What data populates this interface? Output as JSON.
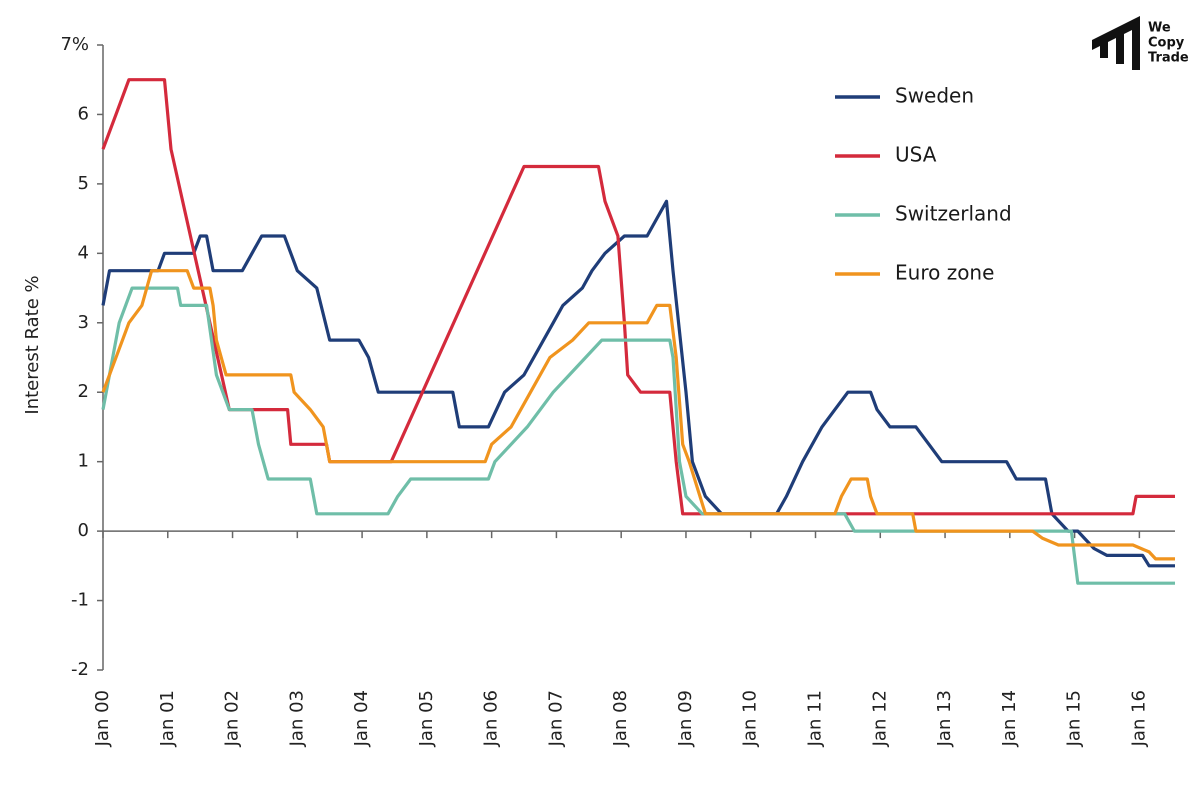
{
  "chart_data": {
    "type": "line",
    "y_label": "Interest Rate %",
    "xlim": [
      2000,
      2016.55
    ],
    "xticks": [
      {
        "value": 2000,
        "label": "Jan 00"
      },
      {
        "value": 2001,
        "label": "Jan 01"
      },
      {
        "value": 2002,
        "label": "Jan 02"
      },
      {
        "value": 2003,
        "label": "Jan 03"
      },
      {
        "value": 2004,
        "label": "Jan 04"
      },
      {
        "value": 2005,
        "label": "Jan 05"
      },
      {
        "value": 2006,
        "label": "Jan 06"
      },
      {
        "value": 2007,
        "label": "Jan 07"
      },
      {
        "value": 2008,
        "label": "Jan 08"
      },
      {
        "value": 2009,
        "label": "Jan 09"
      },
      {
        "value": 2010,
        "label": "Jan 10"
      },
      {
        "value": 2011,
        "label": "Jan 11"
      },
      {
        "value": 2012,
        "label": "Jan 12"
      },
      {
        "value": 2013,
        "label": "Jan 13"
      },
      {
        "value": 2014,
        "label": "Jan 14"
      },
      {
        "value": 2015,
        "label": "Jan 15"
      },
      {
        "value": 2016,
        "label": "Jan 16"
      }
    ],
    "ylim": [
      -2,
      7
    ],
    "yticks": [
      -2,
      -1,
      0,
      1,
      2,
      3,
      4,
      5,
      6,
      {
        "value": 7,
        "label": "7%"
      }
    ],
    "legend": "top-right",
    "series": [
      {
        "name": "Sweden",
        "color": "#1f3d78",
        "x": [
          2000.0,
          2000.1,
          2000.85,
          2000.95,
          2001.4,
          2001.5,
          2001.6,
          2001.7,
          2002.15,
          2002.3,
          2002.45,
          2002.8,
          2003.0,
          2003.3,
          2003.5,
          2003.95,
          2004.1,
          2004.25,
          2005.4,
          2005.5,
          2005.95,
          2006.2,
          2006.5,
          2006.95,
          2007.1,
          2007.4,
          2007.55,
          2007.75,
          2008.05,
          2008.4,
          2008.55,
          2008.7,
          2008.8,
          2009.0,
          2009.1,
          2009.3,
          2009.55,
          2010.4,
          2010.55,
          2010.8,
          2011.1,
          2011.3,
          2011.5,
          2011.85,
          2011.95,
          2012.15,
          2012.55,
          2012.75,
          2012.95,
          2013.95,
          2014.1,
          2014.55,
          2014.65,
          2014.9,
          2015.05,
          2015.15,
          2015.3,
          2015.5,
          2016.05,
          2016.15,
          2016.55
        ],
        "values": [
          3.25,
          3.75,
          3.75,
          4.0,
          4.0,
          4.25,
          4.25,
          3.75,
          3.75,
          4.0,
          4.25,
          4.25,
          3.75,
          3.5,
          2.75,
          2.75,
          2.5,
          2.0,
          2.0,
          1.5,
          1.5,
          2.0,
          2.25,
          3.0,
          3.25,
          3.5,
          3.75,
          4.0,
          4.25,
          4.25,
          4.5,
          4.75,
          3.75,
          2.0,
          1.0,
          0.5,
          0.25,
          0.25,
          0.5,
          1.0,
          1.5,
          1.75,
          2.0,
          2.0,
          1.75,
          1.5,
          1.5,
          1.25,
          1.0,
          1.0,
          0.75,
          0.75,
          0.25,
          0,
          0,
          -0.1,
          -0.25,
          -0.35,
          -0.35,
          -0.5,
          -0.5
        ]
      },
      {
        "name": "USA",
        "color": "#d42a3c",
        "x": [
          2000.0,
          2000.2,
          2000.4,
          2000.95,
          2001.05,
          2001.95,
          2002.85,
          2002.9,
          2003.45,
          2003.5,
          2004.45,
          2006.5,
          2007.65,
          2007.75,
          2007.95,
          2008.05,
          2008.1,
          2008.3,
          2008.75,
          2008.85,
          2008.95,
          2015.9,
          2015.95,
          2016.55
        ],
        "values": [
          5.5,
          6.0,
          6.5,
          6.5,
          5.5,
          1.75,
          1.75,
          1.25,
          1.25,
          1.0,
          1.0,
          5.25,
          5.25,
          4.75,
          4.25,
          3.0,
          2.25,
          2.0,
          2.0,
          1.0,
          0.25,
          0.25,
          0.5,
          0.5
        ]
      },
      {
        "name": "Switzerland",
        "color": "#6fbea8",
        "x": [
          2000.0,
          2000.15,
          2000.25,
          2000.45,
          2001.15,
          2001.2,
          2001.6,
          2001.75,
          2001.95,
          2002.3,
          2002.4,
          2002.55,
          2003.2,
          2003.3,
          2004.4,
          2004.55,
          2004.75,
          2005.95,
          2006.05,
          2006.3,
          2006.55,
          2006.95,
          2007.2,
          2007.45,
          2007.7,
          2008.75,
          2008.8,
          2008.9,
          2009.0,
          2009.25,
          2011.45,
          2011.6,
          2014.95,
          2015.05,
          2016.55
        ],
        "values": [
          1.75,
          2.5,
          3.0,
          3.5,
          3.5,
          3.25,
          3.25,
          2.25,
          1.75,
          1.75,
          1.25,
          0.75,
          0.75,
          0.25,
          0.25,
          0.5,
          0.75,
          0.75,
          1.0,
          1.25,
          1.5,
          2.0,
          2.25,
          2.5,
          2.75,
          2.75,
          2.5,
          1.0,
          0.5,
          0.25,
          0.25,
          0,
          0,
          -0.75,
          -0.75
        ]
      },
      {
        "name": "Euro zone",
        "color": "#f0941e",
        "x": [
          2000.0,
          2000.2,
          2000.4,
          2000.6,
          2000.75,
          2001.3,
          2001.4,
          2001.65,
          2001.7,
          2001.75,
          2001.9,
          2002.9,
          2002.95,
          2003.2,
          2003.4,
          2003.5,
          2005.9,
          2006.0,
          2006.3,
          2006.6,
          2006.9,
          2007.25,
          2007.5,
          2008.4,
          2008.55,
          2008.75,
          2008.85,
          2008.95,
          2009.05,
          2009.3,
          2011.3,
          2011.4,
          2011.55,
          2011.8,
          2011.85,
          2011.95,
          2012.5,
          2012.55,
          2014.35,
          2014.5,
          2014.75,
          2015.9,
          2016.15,
          2016.25,
          2016.55
        ],
        "values": [
          2.0,
          2.5,
          3.0,
          3.25,
          3.75,
          3.75,
          3.5,
          3.5,
          3.25,
          2.75,
          2.25,
          2.25,
          2.0,
          1.75,
          1.5,
          1.0,
          1.0,
          1.25,
          1.5,
          2.0,
          2.5,
          2.75,
          3.0,
          3.0,
          3.25,
          3.25,
          2.5,
          1.25,
          1.0,
          0.25,
          0.25,
          0.5,
          0.75,
          0.75,
          0.5,
          0.25,
          0.25,
          0,
          0,
          -0.1,
          -0.2,
          -0.2,
          -0.3,
          -0.4,
          -0.4
        ]
      }
    ]
  },
  "logo": {
    "line1": "We",
    "line2": "Copy",
    "line3": "Trade"
  }
}
